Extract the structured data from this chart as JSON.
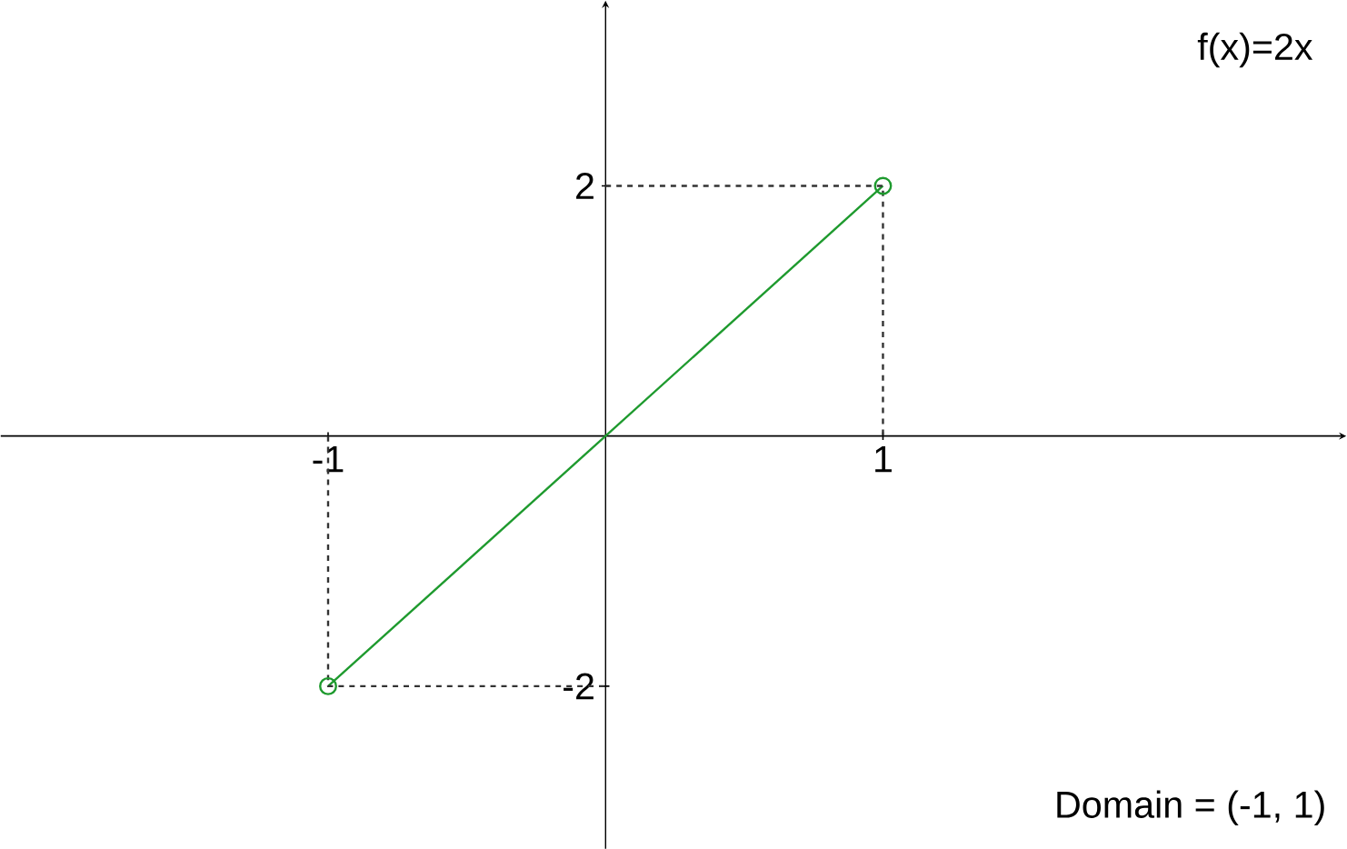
{
  "chart_data": {
    "type": "line",
    "xlim": [
      -2.18,
      2.67
    ],
    "ylim": [
      -3.3,
      3.48
    ],
    "xticks": [
      -1,
      1
    ],
    "yticks": [
      -2,
      2
    ],
    "series": [
      {
        "color": "#1e9a2e",
        "x": [
          -1,
          1
        ],
        "values": [
          -2,
          2
        ],
        "marker": "circle",
        "line_style": "solid"
      },
      {
        "color": "#333333",
        "x": [
          0,
          1,
          1
        ],
        "values": [
          2,
          2,
          0
        ],
        "marker": "none",
        "line_style": "dashed"
      },
      {
        "color": "#333333",
        "x": [
          -1,
          -1,
          0
        ],
        "values": [
          0,
          -2,
          -2
        ],
        "marker": "none",
        "line_style": "dashed"
      }
    ],
    "annotations": [
      "f(x)=2x",
      "Domain = (-1, 1)"
    ]
  }
}
